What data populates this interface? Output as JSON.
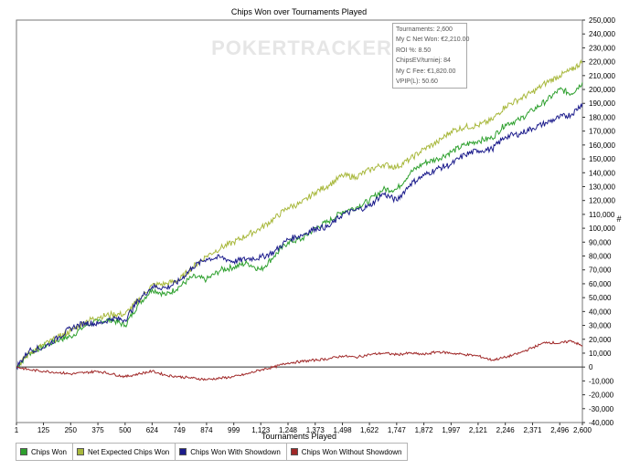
{
  "chart_data": {
    "type": "line",
    "title": "Chips Won over Tournaments Played",
    "xlabel": "Tournaments Played",
    "ylabel": "",
    "xlim": [
      1,
      2600
    ],
    "ylim": [
      -40000,
      250000
    ],
    "x_ticks": [
      "1",
      "125",
      "250",
      "375",
      "500",
      "624",
      "749",
      "874",
      "999",
      "1,123",
      "1,248",
      "1,373",
      "1,498",
      "1,622",
      "1,747",
      "1,872",
      "1,997",
      "2,121",
      "2,246",
      "2,371",
      "2,496",
      "2,600"
    ],
    "x_tick_values": [
      1,
      125,
      250,
      375,
      500,
      624,
      749,
      874,
      999,
      1123,
      1248,
      1373,
      1498,
      1622,
      1747,
      1872,
      1997,
      2121,
      2246,
      2371,
      2496,
      2600
    ],
    "y_ticks": [
      "250,000",
      "240,000",
      "230,000",
      "220,000",
      "210,000",
      "200,000",
      "190,000",
      "180,000",
      "170,000",
      "160,000",
      "150,000",
      "140,000",
      "130,000",
      "120,000",
      "110,000",
      "100,000",
      "90,000",
      "80,000",
      "70,000",
      "60,000",
      "50,000",
      "40,000",
      "30,000",
      "20,000",
      "10,000",
      "0",
      "-10,000",
      "-20,000",
      "-30,000",
      "-40,000"
    ],
    "y_tick_values": [
      250000,
      240000,
      230000,
      220000,
      210000,
      200000,
      190000,
      180000,
      170000,
      160000,
      150000,
      140000,
      130000,
      120000,
      110000,
      100000,
      90000,
      80000,
      70000,
      60000,
      50000,
      40000,
      30000,
      20000,
      10000,
      0,
      -10000,
      -20000,
      -30000,
      -40000
    ],
    "y_axis_side": "right",
    "grid": false,
    "zero_line": true,
    "legend_position": "bottom",
    "watermark": "POKERTRACKER",
    "x": [
      1,
      60,
      125,
      200,
      250,
      320,
      375,
      440,
      500,
      560,
      624,
      690,
      749,
      810,
      874,
      940,
      999,
      1060,
      1123,
      1185,
      1248,
      1310,
      1373,
      1435,
      1498,
      1560,
      1622,
      1685,
      1747,
      1810,
      1872,
      1935,
      1997,
      2060,
      2121,
      2185,
      2246,
      2310,
      2371,
      2435,
      2496,
      2550,
      2600
    ],
    "series": [
      {
        "name": "Chips Won",
        "color": "#2ea02e",
        "values": [
          0,
          10000,
          15000,
          20000,
          22000,
          30000,
          33000,
          34000,
          30000,
          45000,
          56000,
          52000,
          58000,
          65000,
          63000,
          70000,
          72000,
          75000,
          70000,
          80000,
          90000,
          92000,
          100000,
          105000,
          112000,
          115000,
          120000,
          128000,
          128000,
          140000,
          147000,
          150000,
          155000,
          160000,
          163000,
          165000,
          175000,
          178000,
          185000,
          192000,
          200000,
          197000,
          205000
        ]
      },
      {
        "name": "Net Expected Chips Won",
        "color": "#a8b83c",
        "values": [
          0,
          10000,
          16000,
          22000,
          26000,
          33000,
          36000,
          38000,
          38000,
          48000,
          59000,
          60000,
          63000,
          72000,
          80000,
          86000,
          90000,
          95000,
          100000,
          107000,
          115000,
          118000,
          126000,
          131000,
          138000,
          137000,
          142000,
          146000,
          144000,
          150000,
          157000,
          162000,
          170000,
          173000,
          174000,
          178000,
          188000,
          193000,
          198000,
          205000,
          210000,
          214000,
          220000
        ]
      },
      {
        "name": "Chips Won With Showdown",
        "color": "#1c1c8c",
        "values": [
          0,
          12000,
          14000,
          22000,
          28000,
          32000,
          31000,
          35000,
          34000,
          48000,
          58000,
          57000,
          62000,
          72000,
          78000,
          79000,
          76000,
          78000,
          79000,
          83000,
          92000,
          95000,
          100000,
          101000,
          110000,
          113000,
          116000,
          125000,
          120000,
          132000,
          138000,
          143000,
          146000,
          153000,
          156000,
          157000,
          166000,
          168000,
          172000,
          176000,
          180000,
          182000,
          190000
        ]
      },
      {
        "name": "Chips Won Without Showdown",
        "color": "#a02828",
        "values": [
          0,
          -2000,
          -3000,
          -4000,
          -5000,
          -4000,
          -3000,
          -5000,
          -7000,
          -5000,
          -3000,
          -6000,
          -7000,
          -8000,
          -9000,
          -8000,
          -7000,
          -5000,
          -2000,
          0,
          3000,
          4000,
          5000,
          6000,
          8000,
          7000,
          9000,
          10000,
          9000,
          10000,
          9000,
          11000,
          10000,
          9000,
          8000,
          5000,
          7000,
          10000,
          14000,
          18000,
          17000,
          19000,
          15000
        ]
      }
    ]
  },
  "legend": [
    {
      "label": "Chips Won",
      "color": "#2ea02e"
    },
    {
      "label": "Net Expected Chips Won",
      "color": "#a8b83c"
    },
    {
      "label": "Chips Won With Showdown",
      "color": "#1c1c8c"
    },
    {
      "label": "Chips Won Without Showdown",
      "color": "#a02828"
    }
  ],
  "infobox": [
    "Tournaments: 2,600",
    "My C Net Won: €2,210.00",
    "ROI %: 8.50",
    "ChipsEV/turniej: 84",
    "My C Fee: €1,820.00",
    "VPIP(L): 50.60"
  ],
  "y_axis_symbol": "#"
}
